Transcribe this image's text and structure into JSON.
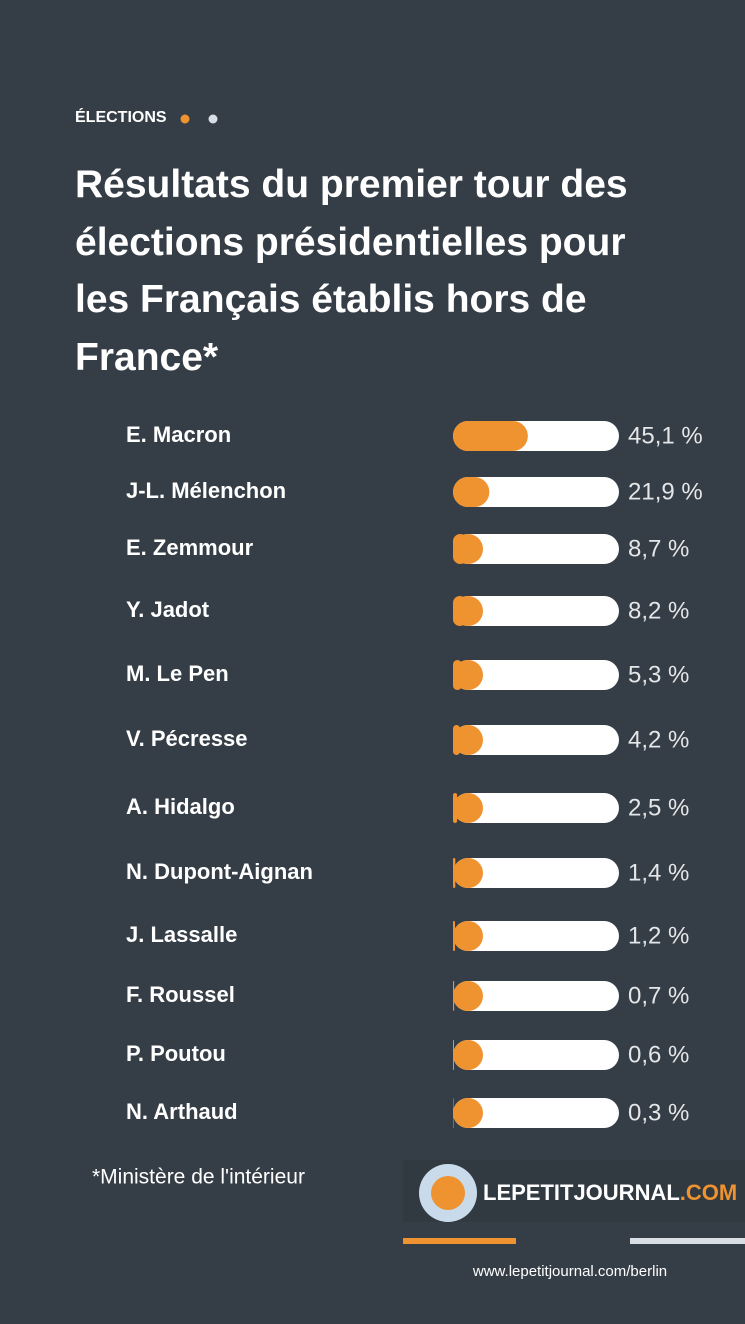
{
  "tag": "ÉLECTIONS",
  "footnote": "*Ministère de l'intérieur",
  "logo": {
    "name": "LEPETITJOURNAL",
    "suffix": ".COM"
  },
  "url": "www.lepetitjournal.com/berlin",
  "chart_data": {
    "type": "bar",
    "orientation": "horizontal",
    "title": "Résultats du premier tour des élections présidentielles pour les Français établis hors de France*",
    "categories": [
      "E. Macron",
      "J-L. Mélenchon",
      "E. Zemmour",
      "Y. Jadot",
      "M. Le Pen",
      "V. Pécresse",
      "A. Hidalgo",
      "N. Dupont-Aignan",
      "J. Lassalle",
      "F. Roussel",
      "P. Poutou",
      "N. Arthaud"
    ],
    "values": [
      45.1,
      21.9,
      8.7,
      8.2,
      5.3,
      4.2,
      2.5,
      1.4,
      1.2,
      0.7,
      0.6,
      0.3
    ],
    "value_labels": [
      "45,1 %",
      "21,9 %",
      "8,7 %",
      "8,2 %",
      "5,3 %",
      "4,2 %",
      "2,5 %",
      "1,4 %",
      "1,2 %",
      "0,7 %",
      "0,6 %",
      "0,3 %"
    ],
    "color": "#ef9230",
    "xlim": [
      0,
      100
    ]
  }
}
